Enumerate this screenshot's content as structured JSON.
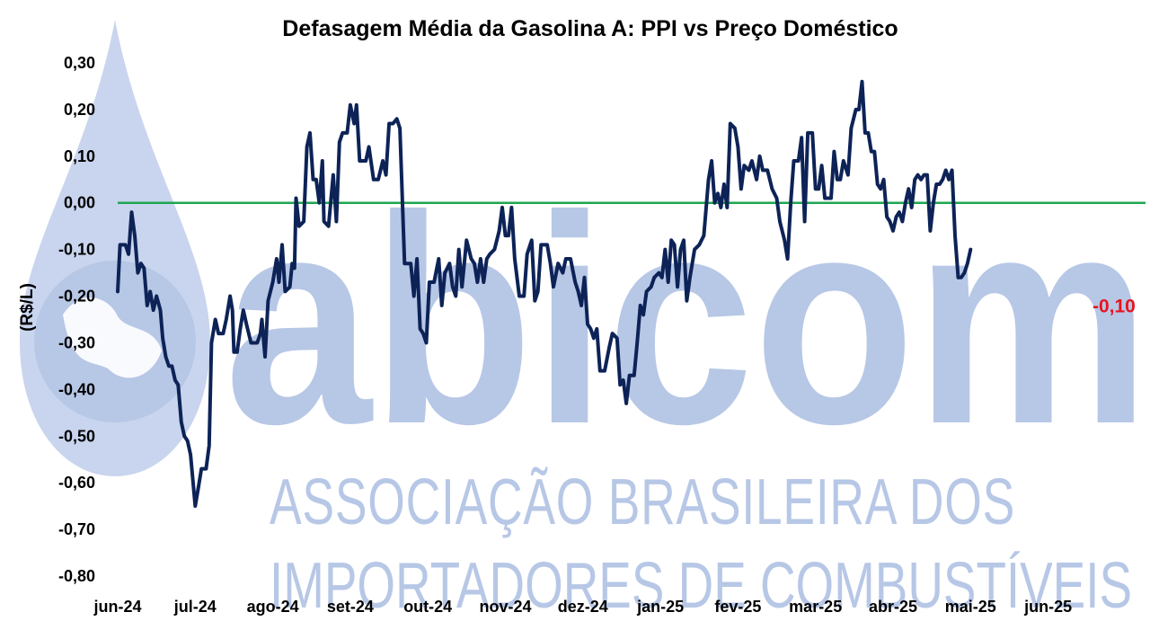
{
  "watermark": {
    "brand": "abicom",
    "line1": "ASSOCIAÇÃO BRASILEIRA DOS",
    "line2": "IMPORTADORES DE COMBUSTÍVEIS",
    "color": "#b7c7e6"
  },
  "chart_data": {
    "type": "line",
    "title": "Defasagem Média da Gasolina A: PPI vs Preço Doméstico",
    "ylabel": "(R$/L)",
    "xlabel": "",
    "ylim": [
      -0.8,
      0.3
    ],
    "y_ticks": [
      "0,30",
      "0,20",
      "0,10",
      "0,00",
      "-0,10",
      "-0,20",
      "-0,30",
      "-0,40",
      "-0,50",
      "-0,60",
      "-0,70",
      "-0,80"
    ],
    "x_tick_labels": [
      "jun-24",
      "jul-24",
      "ago-24",
      "set-24",
      "out-24",
      "nov-24",
      "dez-24",
      "jan-25",
      "fev-25",
      "mar-25",
      "abr-25",
      "mai-25",
      "jun-25"
    ],
    "x_tick_positions": [
      0,
      1,
      2,
      3,
      4,
      5,
      6,
      7,
      8,
      9,
      10,
      11,
      12
    ],
    "x_range": [
      0,
      13.1
    ],
    "reference_line": {
      "y": 0.0,
      "color": "#1fa650"
    },
    "series_color": "#0d2357",
    "last_label": {
      "text": "-0,10",
      "color": "#e8141e"
    },
    "grid": false,
    "legend": "none",
    "series": [
      {
        "values": [
          [
            0.0,
            -0.19
          ],
          [
            0.03,
            -0.09
          ],
          [
            0.1,
            -0.09
          ],
          [
            0.14,
            -0.11
          ],
          [
            0.18,
            -0.02
          ],
          [
            0.22,
            -0.07
          ],
          [
            0.26,
            -0.15
          ],
          [
            0.3,
            -0.13
          ],
          [
            0.34,
            -0.14
          ],
          [
            0.38,
            -0.22
          ],
          [
            0.42,
            -0.19
          ],
          [
            0.46,
            -0.23
          ],
          [
            0.5,
            -0.2
          ],
          [
            0.55,
            -0.23
          ],
          [
            0.58,
            -0.29
          ],
          [
            0.62,
            -0.33
          ],
          [
            0.66,
            -0.35
          ],
          [
            0.7,
            -0.35
          ],
          [
            0.74,
            -0.38
          ],
          [
            0.78,
            -0.39
          ],
          [
            0.82,
            -0.47
          ],
          [
            0.86,
            -0.5
          ],
          [
            0.9,
            -0.51
          ],
          [
            0.94,
            -0.54
          ],
          [
            1.0,
            -0.65
          ],
          [
            1.04,
            -0.61
          ],
          [
            1.08,
            -0.57
          ],
          [
            1.14,
            -0.57
          ],
          [
            1.18,
            -0.52
          ],
          [
            1.21,
            -0.3
          ],
          [
            1.26,
            -0.25
          ],
          [
            1.3,
            -0.28
          ],
          [
            1.36,
            -0.28
          ],
          [
            1.4,
            -0.25
          ],
          [
            1.45,
            -0.2
          ],
          [
            1.48,
            -0.23
          ],
          [
            1.5,
            -0.32
          ],
          [
            1.54,
            -0.32
          ],
          [
            1.58,
            -0.27
          ],
          [
            1.62,
            -0.23
          ],
          [
            1.66,
            -0.26
          ],
          [
            1.72,
            -0.3
          ],
          [
            1.8,
            -0.3
          ],
          [
            1.84,
            -0.28
          ],
          [
            1.86,
            -0.25
          ],
          [
            1.9,
            -0.33
          ],
          [
            1.94,
            -0.21
          ],
          [
            2.0,
            -0.17
          ],
          [
            2.05,
            -0.12
          ],
          [
            2.08,
            -0.17
          ],
          [
            2.12,
            -0.09
          ],
          [
            2.16,
            -0.19
          ],
          [
            2.22,
            -0.18
          ],
          [
            2.25,
            -0.13
          ],
          [
            2.28,
            -0.14
          ],
          [
            2.3,
            0.01
          ],
          [
            2.34,
            -0.05
          ],
          [
            2.4,
            -0.04
          ],
          [
            2.44,
            0.12
          ],
          [
            2.48,
            0.15
          ],
          [
            2.52,
            0.05
          ],
          [
            2.56,
            0.05
          ],
          [
            2.6,
            0.0
          ],
          [
            2.64,
            0.09
          ],
          [
            2.66,
            -0.04
          ],
          [
            2.72,
            -0.05
          ],
          [
            2.78,
            0.06
          ],
          [
            2.82,
            -0.04
          ],
          [
            2.86,
            0.13
          ],
          [
            2.9,
            0.15
          ],
          [
            2.96,
            0.15
          ],
          [
            3.0,
            0.21
          ],
          [
            3.05,
            0.17
          ],
          [
            3.08,
            0.21
          ],
          [
            3.12,
            0.09
          ],
          [
            3.2,
            0.09
          ],
          [
            3.24,
            0.12
          ],
          [
            3.3,
            0.05
          ],
          [
            3.36,
            0.05
          ],
          [
            3.42,
            0.09
          ],
          [
            3.46,
            0.06
          ],
          [
            3.5,
            0.17
          ],
          [
            3.55,
            0.17
          ],
          [
            3.6,
            0.18
          ],
          [
            3.64,
            0.16
          ],
          [
            3.7,
            -0.13
          ],
          [
            3.78,
            -0.13
          ],
          [
            3.82,
            -0.2
          ],
          [
            3.86,
            -0.12
          ],
          [
            3.9,
            -0.27
          ],
          [
            3.94,
            -0.28
          ],
          [
            3.98,
            -0.3
          ],
          [
            4.02,
            -0.17
          ],
          [
            4.08,
            -0.17
          ],
          [
            4.14,
            -0.12
          ],
          [
            4.18,
            -0.22
          ],
          [
            4.22,
            -0.15
          ],
          [
            4.28,
            -0.13
          ],
          [
            4.32,
            -0.18
          ],
          [
            4.36,
            -0.2
          ],
          [
            4.4,
            -0.1
          ],
          [
            4.44,
            -0.18
          ],
          [
            4.5,
            -0.08
          ],
          [
            4.56,
            -0.12
          ],
          [
            4.6,
            -0.13
          ],
          [
            4.64,
            -0.17
          ],
          [
            4.68,
            -0.12
          ],
          [
            4.72,
            -0.17
          ],
          [
            4.76,
            -0.12
          ],
          [
            4.8,
            -0.11
          ],
          [
            4.86,
            -0.1
          ],
          [
            4.92,
            -0.06
          ],
          [
            4.96,
            -0.01
          ],
          [
            5.0,
            -0.07
          ],
          [
            5.04,
            -0.07
          ],
          [
            5.08,
            -0.01
          ],
          [
            5.12,
            -0.12
          ],
          [
            5.18,
            -0.2
          ],
          [
            5.24,
            -0.2
          ],
          [
            5.28,
            -0.11
          ],
          [
            5.34,
            -0.08
          ],
          [
            5.38,
            -0.21
          ],
          [
            5.42,
            -0.19
          ],
          [
            5.46,
            -0.09
          ],
          [
            5.54,
            -0.09
          ],
          [
            5.58,
            -0.13
          ],
          [
            5.62,
            -0.18
          ],
          [
            5.68,
            -0.13
          ],
          [
            5.74,
            -0.15
          ],
          [
            5.78,
            -0.12
          ],
          [
            5.84,
            -0.12
          ],
          [
            5.9,
            -0.17
          ],
          [
            5.94,
            -0.19
          ],
          [
            5.98,
            -0.22
          ],
          [
            6.02,
            -0.16
          ],
          [
            6.06,
            -0.26
          ],
          [
            6.1,
            -0.27
          ],
          [
            6.14,
            -0.29
          ],
          [
            6.18,
            -0.27
          ],
          [
            6.22,
            -0.36
          ],
          [
            6.28,
            -0.36
          ],
          [
            6.34,
            -0.31
          ],
          [
            6.38,
            -0.28
          ],
          [
            6.44,
            -0.29
          ],
          [
            6.48,
            -0.39
          ],
          [
            6.52,
            -0.38
          ],
          [
            6.56,
            -0.43
          ],
          [
            6.6,
            -0.37
          ],
          [
            6.66,
            -0.37
          ],
          [
            6.7,
            -0.3
          ],
          [
            6.74,
            -0.22
          ],
          [
            6.78,
            -0.24
          ],
          [
            6.82,
            -0.19
          ],
          [
            6.88,
            -0.18
          ],
          [
            6.92,
            -0.16
          ],
          [
            6.98,
            -0.15
          ],
          [
            7.02,
            -0.16
          ],
          [
            7.06,
            -0.1
          ],
          [
            7.1,
            -0.17
          ],
          [
            7.14,
            -0.08
          ],
          [
            7.18,
            -0.09
          ],
          [
            7.22,
            -0.18
          ],
          [
            7.26,
            -0.1
          ],
          [
            7.3,
            -0.08
          ],
          [
            7.34,
            -0.21
          ],
          [
            7.38,
            -0.16
          ],
          [
            7.44,
            -0.1
          ],
          [
            7.5,
            -0.09
          ],
          [
            7.56,
            -0.07
          ],
          [
            7.62,
            0.05
          ],
          [
            7.66,
            0.09
          ],
          [
            7.7,
            0.0
          ],
          [
            7.74,
            0.02
          ],
          [
            7.78,
            -0.01
          ],
          [
            7.82,
            0.04
          ],
          [
            7.86,
            -0.01
          ],
          [
            7.9,
            0.17
          ],
          [
            7.96,
            0.16
          ],
          [
            8.0,
            0.12
          ],
          [
            8.04,
            0.03
          ],
          [
            8.08,
            0.08
          ],
          [
            8.14,
            0.07
          ],
          [
            8.18,
            0.09
          ],
          [
            8.24,
            0.05
          ],
          [
            8.28,
            0.1
          ],
          [
            8.32,
            0.07
          ],
          [
            8.38,
            0.07
          ],
          [
            8.44,
            0.03
          ],
          [
            8.5,
            0.01
          ],
          [
            8.54,
            -0.04
          ],
          [
            8.6,
            -0.08
          ],
          [
            8.64,
            -0.12
          ],
          [
            8.68,
            0.0
          ],
          [
            8.72,
            0.09
          ],
          [
            8.78,
            0.09
          ],
          [
            8.82,
            0.14
          ],
          [
            8.86,
            -0.04
          ],
          [
            8.9,
            0.15
          ],
          [
            8.96,
            0.15
          ],
          [
            9.0,
            0.03
          ],
          [
            9.04,
            0.03
          ],
          [
            9.08,
            0.08
          ],
          [
            9.12,
            0.01
          ],
          [
            9.2,
            0.01
          ],
          [
            9.24,
            0.11
          ],
          [
            9.28,
            0.05
          ],
          [
            9.32,
            0.05
          ],
          [
            9.36,
            0.09
          ],
          [
            9.42,
            0.06
          ],
          [
            9.46,
            0.16
          ],
          [
            9.52,
            0.2
          ],
          [
            9.56,
            0.2
          ],
          [
            9.6,
            0.26
          ],
          [
            9.64,
            0.15
          ],
          [
            9.68,
            0.15
          ],
          [
            9.72,
            0.11
          ],
          [
            9.76,
            0.11
          ],
          [
            9.8,
            0.04
          ],
          [
            9.84,
            0.03
          ],
          [
            9.88,
            0.05
          ],
          [
            9.92,
            -0.03
          ],
          [
            9.96,
            -0.04
          ],
          [
            10.0,
            -0.06
          ],
          [
            10.04,
            -0.03
          ],
          [
            10.08,
            -0.02
          ],
          [
            10.12,
            -0.04
          ],
          [
            10.16,
            0.0
          ],
          [
            10.2,
            0.03
          ],
          [
            10.24,
            -0.01
          ],
          [
            10.28,
            0.05
          ],
          [
            10.32,
            0.06
          ],
          [
            10.36,
            0.05
          ],
          [
            10.4,
            0.06
          ],
          [
            10.44,
            0.06
          ],
          [
            10.48,
            -0.06
          ],
          [
            10.52,
            0.0
          ],
          [
            10.56,
            0.04
          ],
          [
            10.6,
            0.04
          ],
          [
            10.64,
            0.05
          ],
          [
            10.68,
            0.07
          ],
          [
            10.72,
            0.05
          ],
          [
            10.76,
            0.07
          ],
          [
            10.8,
            -0.07
          ],
          [
            10.84,
            -0.16
          ],
          [
            10.88,
            -0.16
          ],
          [
            10.92,
            -0.15
          ],
          [
            10.96,
            -0.13
          ],
          [
            11.0,
            -0.1
          ]
        ]
      }
    ]
  }
}
